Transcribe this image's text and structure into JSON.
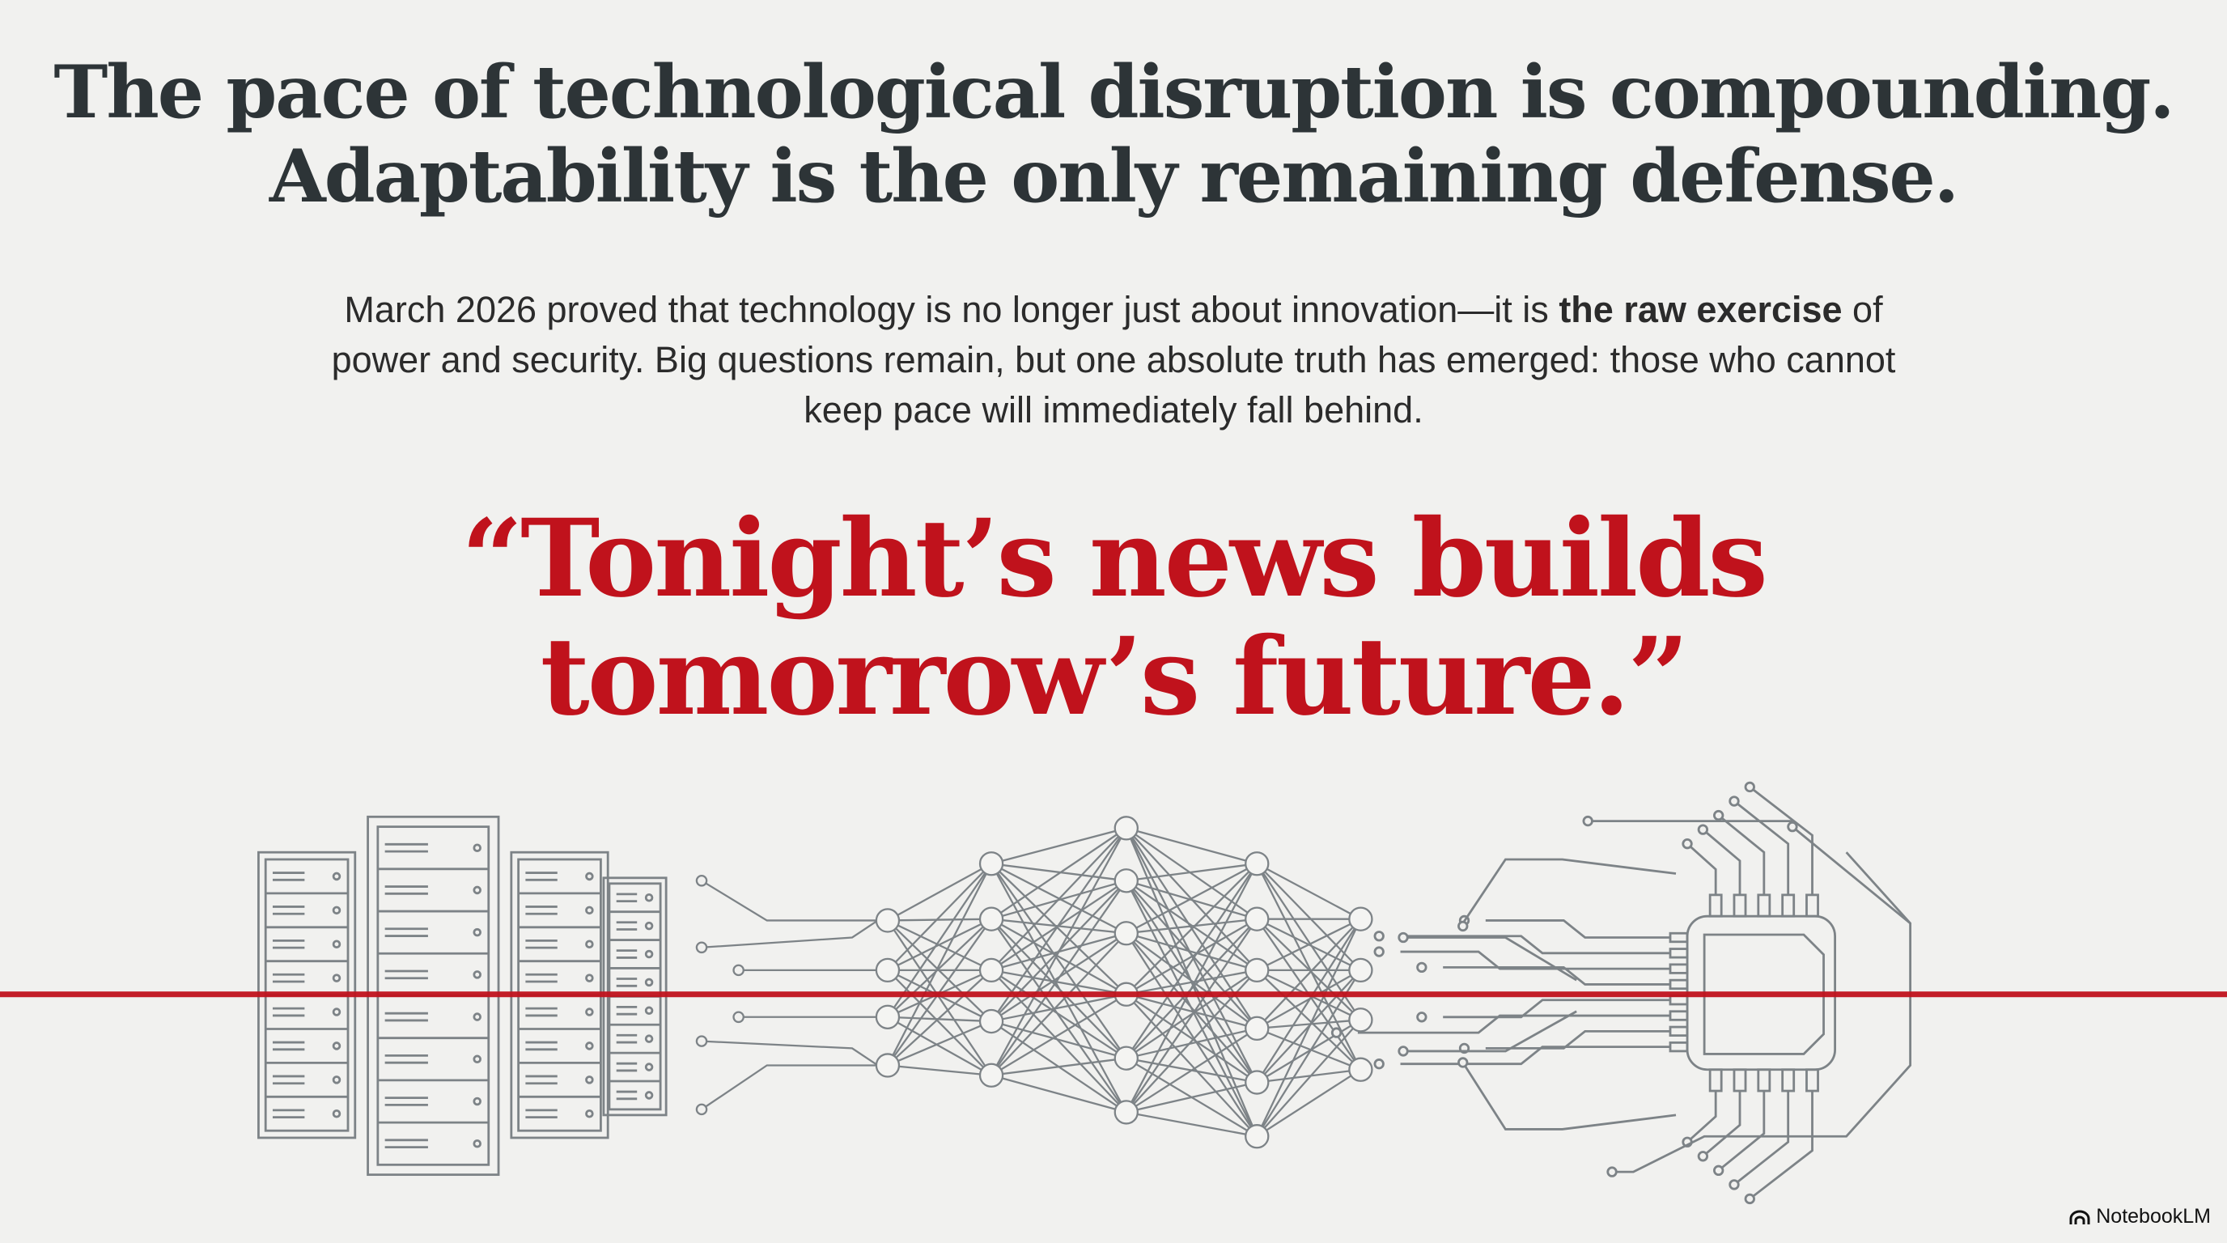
{
  "headline": {
    "line1": "The pace of technological disruption is compounding.",
    "line2": "Adaptability is the only remaining defense."
  },
  "body": {
    "part1": "March 2026 proved that technology is no longer just about innovation—it is ",
    "bold": "the raw exercise",
    "part2": " of power and security. Big questions remain, but one absolute truth has emerged: those who cannot keep pace will immediately fall behind."
  },
  "quote": {
    "line1": "“Tonight’s news builds",
    "line2": "tomorrow’s future.”"
  },
  "brand": {
    "label": "NotebookLM",
    "icon": "notebooklm-logo-icon"
  },
  "colors": {
    "accent": "#c0121c",
    "text": "#2d3437",
    "line_art": "#7a8084",
    "background": "#f1f1ef"
  }
}
